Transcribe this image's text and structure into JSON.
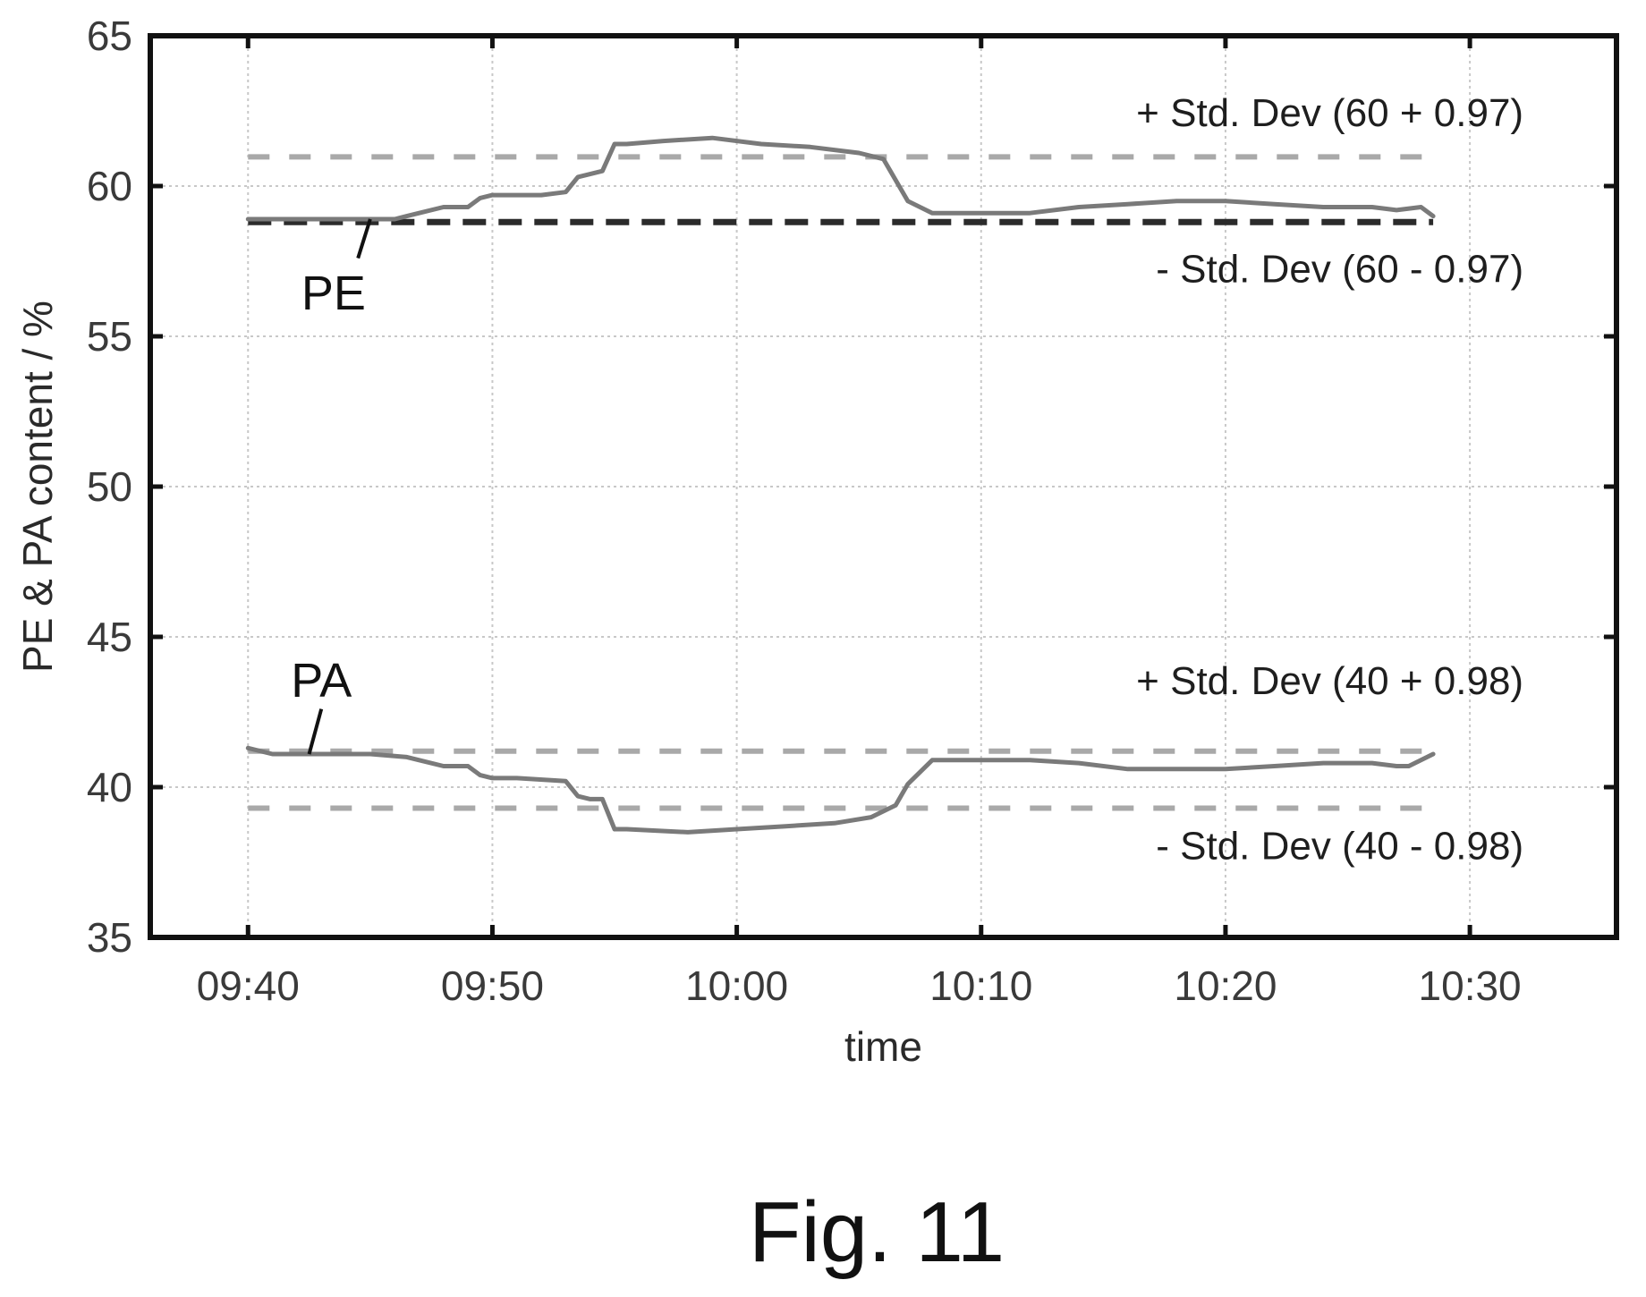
{
  "caption": "Fig. 11",
  "colors": {
    "series": "#7a7a7a",
    "threshold_dashed_light": "#a9a9a9",
    "threshold_dashed_dark": "#2b2b2b",
    "grid": "#c8c8c8",
    "frame": "#111111"
  },
  "chart_data": {
    "type": "line",
    "title": "",
    "xlabel": "time",
    "ylabel": "PE & PA content / %",
    "x_unit": "clock time (HH:MM)",
    "xlim": [
      "09:36",
      "10:36"
    ],
    "ylim": [
      35,
      65
    ],
    "x_ticks": [
      "09:40",
      "09:50",
      "10:00",
      "10:10",
      "10:20",
      "10:30"
    ],
    "y_ticks": [
      35,
      40,
      45,
      50,
      55,
      60,
      65
    ],
    "grid": true,
    "series": [
      {
        "name": "PE",
        "x": [
          "09:40",
          "09:42",
          "09:44",
          "09:46",
          "09:46:30",
          "09:47",
          "09:48",
          "09:49",
          "09:49:30",
          "09:50",
          "09:51",
          "09:52",
          "09:53",
          "09:53:30",
          "09:54",
          "09:54:30",
          "09:55",
          "09:55:30",
          "09:57",
          "09:59",
          "10:01",
          "10:03",
          "10:05",
          "10:06",
          "10:07",
          "10:08",
          "10:10",
          "10:12",
          "10:14",
          "10:16",
          "10:18",
          "10:20",
          "10:22",
          "10:24",
          "10:26",
          "10:27",
          "10:28",
          "10:28:30"
        ],
        "values": [
          58.9,
          58.9,
          58.9,
          58.9,
          59.0,
          59.1,
          59.3,
          59.3,
          59.6,
          59.7,
          59.7,
          59.7,
          59.8,
          60.3,
          60.4,
          60.5,
          61.4,
          61.4,
          61.5,
          61.6,
          61.4,
          61.3,
          61.1,
          60.9,
          59.5,
          59.1,
          59.1,
          59.1,
          59.3,
          59.4,
          59.5,
          59.5,
          59.4,
          59.3,
          59.3,
          59.2,
          59.3,
          59.0
        ]
      },
      {
        "name": "PA",
        "x": [
          "09:40",
          "09:41",
          "09:43",
          "09:45",
          "09:46:30",
          "09:47",
          "09:48",
          "09:49",
          "09:49:30",
          "09:50",
          "09:51",
          "09:53",
          "09:53:30",
          "09:54",
          "09:54:30",
          "09:55",
          "09:55:30",
          "09:58",
          "10:00",
          "10:02",
          "10:04",
          "10:05:30",
          "10:06:30",
          "10:07",
          "10:08",
          "10:10",
          "10:12",
          "10:14",
          "10:16",
          "10:18",
          "10:20",
          "10:22",
          "10:24",
          "10:26",
          "10:27",
          "10:27:30",
          "10:28:30"
        ],
        "values": [
          41.3,
          41.1,
          41.1,
          41.1,
          41.0,
          40.9,
          40.7,
          40.7,
          40.4,
          40.3,
          40.3,
          40.2,
          39.7,
          39.6,
          39.6,
          38.6,
          38.6,
          38.5,
          38.6,
          38.7,
          38.8,
          39.0,
          39.4,
          40.1,
          40.9,
          40.9,
          40.9,
          40.8,
          40.6,
          40.6,
          40.6,
          40.7,
          40.8,
          40.8,
          40.7,
          40.7,
          41.1
        ]
      },
      {
        "name": "+ Std. Dev (60 + 0.97)",
        "style": "dashed-light",
        "x": [
          "09:40",
          "10:28:30"
        ],
        "values": [
          60.97,
          60.97
        ]
      },
      {
        "name": "- Std. Dev (60 - 0.97)",
        "style": "dashed-dark",
        "x": [
          "09:40",
          "10:28:30"
        ],
        "values": [
          58.8,
          58.8
        ]
      },
      {
        "name": "+ Std. Dev (40 + 0.98)",
        "style": "dashed-light",
        "x": [
          "09:40",
          "10:28:30"
        ],
        "values": [
          41.2,
          41.2
        ]
      },
      {
        "name": "- Std. Dev (40 - 0.98)",
        "style": "dashed-light",
        "x": [
          "09:40",
          "10:28:30"
        ],
        "values": [
          39.3,
          39.3
        ]
      }
    ]
  }
}
